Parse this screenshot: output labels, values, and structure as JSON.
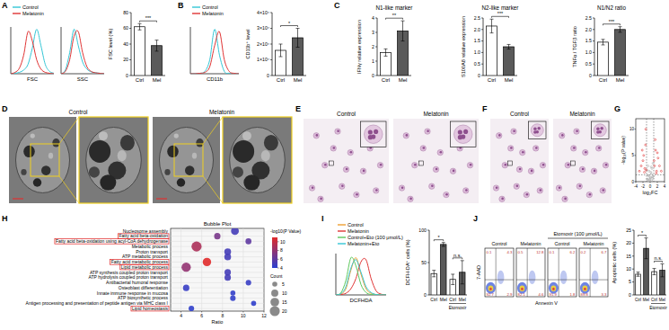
{
  "chart_data": [
    {
      "panel": "A",
      "type": "line",
      "x": [
        0,
        1,
        2,
        3,
        4,
        5,
        6,
        7,
        8,
        9,
        10
      ],
      "xlim": [
        0,
        10
      ],
      "ylim": [
        0,
        100
      ],
      "x_label": "FSC",
      "tick_labels": false,
      "legend": "top-left",
      "series": [
        {
          "name": "Control",
          "color": "#33c6d6",
          "values": [
            0,
            1,
            3,
            8,
            20,
            55,
            95,
            60,
            20,
            5,
            1
          ]
        },
        {
          "name": "Melatonin",
          "color": "#e03434",
          "values": [
            0,
            3,
            12,
            40,
            90,
            70,
            30,
            10,
            3,
            1,
            0
          ]
        }
      ]
    },
    {
      "type": "line",
      "x": [
        0,
        1,
        2,
        3,
        4,
        5,
        6,
        7,
        8,
        9,
        10
      ],
      "xlim": [
        0,
        10
      ],
      "ylim": [
        0,
        100
      ],
      "x_label": "SSC",
      "tick_labels": false,
      "series": [
        {
          "color": "#33c6d6",
          "values": [
            0,
            8,
            45,
            95,
            60,
            25,
            10,
            4,
            2,
            1,
            0
          ]
        },
        {
          "color": "#e03434",
          "values": [
            0,
            5,
            30,
            80,
            90,
            45,
            15,
            5,
            2,
            1,
            0
          ]
        }
      ]
    },
    {
      "type": "bar",
      "y_label": "FSC level (%)",
      "categories": [
        "Ctrl",
        "Mel"
      ],
      "values": [
        62,
        38
      ],
      "errors": [
        4,
        7
      ],
      "colors": [
        "#ffffff",
        "#5a5a5a"
      ],
      "ylim": [
        0,
        80
      ],
      "yticks": [
        0,
        20,
        40,
        60,
        80
      ],
      "comparisons": [
        {
          "between": [
            0,
            1
          ],
          "label": "***"
        }
      ]
    },
    {
      "panel": "B",
      "type": "line",
      "x": [
        0,
        1,
        2,
        3,
        4,
        5,
        6,
        7,
        8,
        9,
        10
      ],
      "xlim": [
        0,
        10
      ],
      "ylim": [
        0,
        100
      ],
      "x_label": "CD11b",
      "tick_labels": false,
      "legend": "top-left",
      "series": [
        {
          "name": "Control",
          "color": "#33c6d6",
          "values": [
            0,
            0,
            1,
            5,
            30,
            95,
            40,
            5,
            1,
            0,
            0
          ]
        },
        {
          "name": "Melatonin",
          "color": "#e03434",
          "values": [
            0,
            0,
            1,
            3,
            15,
            60,
            90,
            30,
            5,
            1,
            0
          ]
        }
      ]
    },
    {
      "type": "bar",
      "y_label": "CD11b⁺ level",
      "categories": [
        "Ctrl",
        "Mel"
      ],
      "values": [
        16000,
        24000
      ],
      "errors": [
        4000,
        6000
      ],
      "colors": [
        "#ffffff",
        "#5a5a5a"
      ],
      "ylim": [
        0,
        40000
      ],
      "yticks": [
        0,
        {
          "value": 10000,
          "label": "1×10⁴"
        },
        {
          "value": 20000,
          "label": "2×10⁴"
        },
        {
          "value": 30000,
          "label": "3×10⁴"
        },
        {
          "value": 40000,
          "label": "4×10⁴"
        }
      ],
      "comparisons": [
        {
          "between": [
            0,
            1
          ],
          "label": "*"
        }
      ]
    },
    {
      "panel": "C",
      "type": "bar",
      "title": "N1-like marker",
      "y_label": "IFNγ relative expression",
      "categories": [
        "Ctrl",
        "Mel"
      ],
      "values": [
        1.6,
        3.1
      ],
      "errors": [
        0.25,
        0.7
      ],
      "colors": [
        "#ffffff",
        "#5a5a5a"
      ],
      "ylim": [
        0,
        4
      ],
      "yticks": [
        0,
        1,
        2,
        3,
        4
      ],
      "comparisons": [
        {
          "between": [
            0,
            1
          ],
          "label": "**"
        }
      ]
    },
    {
      "type": "bar",
      "title": "N2-like marker",
      "y_label": "S100A8 relative expression",
      "categories": [
        "Ctrl",
        "Mel"
      ],
      "values": [
        2.15,
        1.25
      ],
      "errors": [
        0.3,
        0.1
      ],
      "colors": [
        "#ffffff",
        "#5a5a5a"
      ],
      "ylim": [
        0,
        2.5
      ],
      "yticks": [
        0,
        0.5,
        {
          "value": 1,
          "label": "1.0"
        },
        1.5,
        {
          "value": 2,
          "label": "2.0"
        },
        2.5
      ],
      "comparisons": [
        {
          "between": [
            0,
            1
          ],
          "label": "***"
        }
      ]
    },
    {
      "type": "bar",
      "title": "N1/N2 ratio",
      "y_label": "TNFα / TGFβ ratio",
      "categories": [
        "Ctrl",
        "Mel"
      ],
      "values": [
        1.45,
        2.0
      ],
      "errors": [
        0.12,
        0.12
      ],
      "colors": [
        "#ffffff",
        "#5a5a5a"
      ],
      "ylim": [
        0,
        2.5
      ],
      "yticks": [
        0,
        0.5,
        {
          "value": 1,
          "label": "1.0"
        },
        1.5,
        {
          "value": 2,
          "label": "2.0"
        },
        2.5
      ],
      "comparisons": [
        {
          "between": [
            0,
            1
          ],
          "label": "***"
        }
      ]
    },
    {
      "panel": "G",
      "type": "scatter",
      "x_label": "log₂FC",
      "y_label": "-log₁₀(P value)",
      "xlim": [
        -4,
        4
      ],
      "xticks": [
        -4,
        -2,
        0,
        2,
        4
      ],
      "ylim": [
        0,
        12
      ],
      "yticks": [
        0,
        5,
        10
      ],
      "reference_lines": {
        "x": [
          -1,
          1
        ],
        "y": [
          1.3
        ]
      },
      "series": [
        {
          "color": "#a8a8a8",
          "x": [
            -0.8,
            -0.5,
            -0.3,
            -0.1,
            0.1,
            0.3,
            0.5,
            0.7,
            0.9,
            -0.6,
            -0.2,
            0.2,
            0.6,
            -0.9,
            0.4,
            -0.4,
            0.8,
            0,
            -0.7,
            0.3
          ],
          "values": [
            0.5,
            1.2,
            2,
            0.3,
            0.8,
            1.5,
            2.5,
            0.6,
            1,
            3,
            0.4,
            1.8,
            0.9,
            2.2,
            0.2,
            1.1,
            3.5,
            0.7,
            0.4,
            2.8
          ]
        },
        {
          "color": "#e03434",
          "x": [
            -2.5,
            -1.8,
            -1.5,
            -1.3,
            -2,
            -3,
            -1.2,
            1.2,
            1.5,
            1.8,
            2.2,
            2.6,
            3.1,
            1.4,
            2,
            -1.6,
            1.1,
            -2.2,
            1.7,
            -1.1
          ],
          "values": [
            3,
            5,
            2.5,
            7,
            4,
            2,
            10,
            3,
            6,
            2,
            4.5,
            3,
            2,
            8,
            5.5,
            1.8,
            4,
            6,
            1.6,
            2.2
          ]
        }
      ]
    },
    {
      "panel": "H",
      "type": "bubble",
      "title": "Bubble Plot",
      "x_label": "Ratio",
      "grid": true,
      "xlim": [
        3,
        12
      ],
      "xticks": [
        4,
        6,
        8,
        10,
        12
      ],
      "categories": [
        "Nucleosome assembly",
        "Fatty acid beta-oxidation",
        "Fatty acid beta-oxidation using acyl-CoA dehydrogenase",
        "Metabolic process",
        "Proton transport",
        "ATP metabolic process",
        "Fatty acid metabolic process",
        "Lipid metabolic process",
        "ATP synthesis coupled proton transport",
        "ATP hydrolysis coupled proton transport",
        "Antibacterial humoral response",
        "Osteoblast differentiation",
        "Innate immune response in mucosa",
        "ATP biosynthetic process",
        "Antigen processing and presentation of peptide antigen via MHC class I",
        "Lipid homeostasis"
      ],
      "values": [
        9.2,
        7.5,
        10.5,
        5.5,
        8.5,
        8.5,
        6.5,
        4.5,
        8.5,
        8.5,
        10.5,
        4.5,
        9,
        9,
        11,
        5
      ],
      "pvalues": [
        5,
        7,
        6,
        9,
        5,
        5,
        11,
        8,
        5,
        5,
        4.5,
        4.5,
        4.3,
        4.3,
        4.2,
        4.2
      ],
      "sizes": [
        12,
        8,
        7,
        20,
        9,
        9,
        14,
        17,
        8,
        8,
        6,
        8,
        5,
        6,
        5,
        6
      ],
      "highlighted": [
        1,
        2,
        6,
        7,
        15
      ],
      "colorbar": {
        "title": "-log10(P Value)",
        "range": [
          4,
          11
        ],
        "ticks": [
          4,
          6,
          8,
          10
        ],
        "colors": [
          "#2b40d0",
          "#e02a2a"
        ]
      },
      "size_legend": {
        "title": "Count",
        "ticks": [
          5,
          10,
          15,
          20
        ]
      }
    },
    {
      "panel": "I",
      "type": "line",
      "x": [
        0,
        1,
        2,
        3,
        4,
        5,
        6,
        7,
        8,
        9,
        10
      ],
      "xlim": [
        0,
        10
      ],
      "ylim": [
        0,
        100
      ],
      "x_label": "DCFHDA",
      "tick_labels": false,
      "legend": "top-left",
      "series": [
        {
          "name": "Control",
          "color": "#f0a030",
          "values": [
            0,
            2,
            15,
            60,
            90,
            50,
            15,
            4,
            1,
            0,
            0
          ]
        },
        {
          "name": "Melatonin",
          "color": "#e03434",
          "values": [
            0,
            1,
            4,
            15,
            40,
            80,
            85,
            40,
            10,
            2,
            0
          ]
        },
        {
          "name": "Control+Eto (100 μmol/L)",
          "color": "#5cc85c",
          "values": [
            0,
            5,
            35,
            90,
            70,
            25,
            6,
            1,
            0,
            0,
            0
          ]
        },
        {
          "name": "Melatonin+Eto",
          "color": "#33c6d6",
          "values": [
            0,
            3,
            20,
            65,
            85,
            55,
            20,
            6,
            1,
            0,
            0
          ]
        }
      ]
    },
    {
      "type": "bar",
      "y_label": "DCFH-DA⁺ cells (%)",
      "categories": [
        "Ctrl",
        "Mel",
        "Ctrl",
        "Mel"
      ],
      "values": [
        33,
        78,
        24,
        35
      ],
      "errors": [
        5,
        3,
        8,
        18
      ],
      "colors": [
        "#ffffff",
        "#5a5a5a",
        "#ffffff",
        "#5a5a5a"
      ],
      "ylim": [
        0,
        100
      ],
      "yticks": [
        0,
        50,
        100
      ],
      "comparisons": [
        {
          "between": [
            0,
            1
          ],
          "label": "*"
        },
        {
          "between": [
            2,
            3
          ],
          "label": "n.s."
        }
      ],
      "x_group": {
        "label": "Etomoxir",
        "between": [
          2,
          3
        ]
      }
    },
    {
      "type": "bar",
      "y_label": "Apoptotic cells (%)",
      "categories": [
        "Ctrl",
        "Mel",
        "Ctrl",
        "Mel"
      ],
      "values": [
        8,
        18,
        9,
        9.5
      ],
      "errors": [
        0.8,
        4,
        1.2,
        2.5
      ],
      "colors": [
        "#ffffff",
        "#5a5a5a",
        "#ffffff",
        "#5a5a5a"
      ],
      "ylim": [
        0,
        25
      ],
      "yticks": [
        0,
        5,
        10,
        15,
        20,
        25
      ],
      "comparisons": [
        {
          "between": [
            0,
            1
          ],
          "label": "*"
        },
        {
          "between": [
            2,
            3
          ],
          "label": "n.s."
        }
      ],
      "x_group": {
        "label": "Etomoxir",
        "between": [
          2,
          3
        ]
      }
    }
  ],
  "images": [
    {
      "panel": "D",
      "titles": [
        "Control",
        "Melatonin"
      ]
    },
    {
      "panel": "E",
      "titles": [
        "Control",
        "Melatonin"
      ]
    },
    {
      "panel": "F",
      "titles": [
        "Control",
        "Melatonin"
      ]
    }
  ],
  "flow_plots": {
    "panel": "J",
    "header": "Etomoxir (100 μmol/L)",
    "header_plots": [
      2,
      3
    ],
    "x_label": "Annexin V",
    "y_label": "7-AAD",
    "plots": [
      {
        "title": "Control",
        "quadrants": [
          0.1,
          4.3,
          92.7,
          2.9
        ]
      },
      {
        "title": "Melatonin",
        "quadrants": [
          0.5,
          12.8,
          82.1,
          4.6
        ]
      },
      {
        "title": "Control",
        "quadrants": [
          0.1,
          6.2,
          91.9,
          1.8
        ]
      },
      {
        "title": "Melatonin",
        "quadrants": [
          0.2,
          6.7,
          89.8,
          3.3
        ]
      }
    ]
  }
}
